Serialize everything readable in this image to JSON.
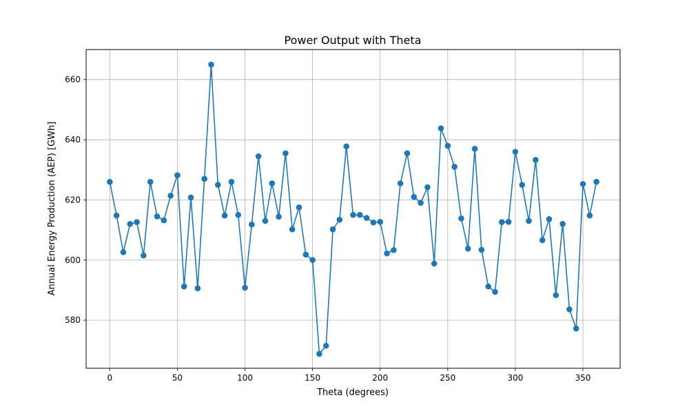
{
  "chart_data": {
    "type": "line",
    "title": "Power Output with Theta",
    "xlabel": "Theta (degrees)",
    "ylabel": "Annual Energy Production (AEP) [GWh]",
    "xlim": [
      -17.5,
      377.5
    ],
    "ylim": [
      564,
      670
    ],
    "xticks": [
      0,
      50,
      100,
      150,
      200,
      250,
      300,
      350
    ],
    "yticks": [
      580,
      600,
      620,
      640,
      660
    ],
    "grid": true,
    "markers": true,
    "series_color": "#1f77b4",
    "x": [
      0,
      5,
      10,
      15,
      20,
      25,
      30,
      35,
      40,
      45,
      50,
      55,
      60,
      65,
      70,
      75,
      80,
      85,
      90,
      95,
      100,
      105,
      110,
      115,
      120,
      125,
      130,
      135,
      140,
      145,
      150,
      155,
      160,
      165,
      170,
      175,
      180,
      185,
      190,
      195,
      200,
      205,
      210,
      215,
      220,
      225,
      230,
      235,
      240,
      245,
      250,
      255,
      260,
      265,
      270,
      275,
      280,
      285,
      290,
      295,
      300,
      305,
      310,
      315,
      320,
      325,
      330,
      335,
      340,
      345,
      350,
      355,
      360
    ],
    "y": [
      626.0,
      614.8,
      602.6,
      612.0,
      612.6,
      601.5,
      626.0,
      614.5,
      613.2,
      621.4,
      628.2,
      591.2,
      620.8,
      590.6,
      627.0,
      665.0,
      625.0,
      614.8,
      626.0,
      615.0,
      590.8,
      611.8,
      634.5,
      613.0,
      625.5,
      614.4,
      635.5,
      610.2,
      617.5,
      601.8,
      600.0,
      568.8,
      571.5,
      610.2,
      613.4,
      637.8,
      615.0,
      615.0,
      614.0,
      612.5,
      612.7,
      602.2,
      603.3,
      625.5,
      635.5,
      621.0,
      619.0,
      624.2,
      598.8,
      643.8,
      638.0,
      631.0,
      613.8,
      603.8,
      637.0,
      603.4,
      591.2,
      589.4,
      612.6,
      612.7,
      636.0,
      625.0,
      613.0,
      633.3,
      606.6,
      613.6,
      588.3,
      612.0,
      583.6,
      577.2,
      625.3,
      614.8,
      626.0
    ]
  }
}
